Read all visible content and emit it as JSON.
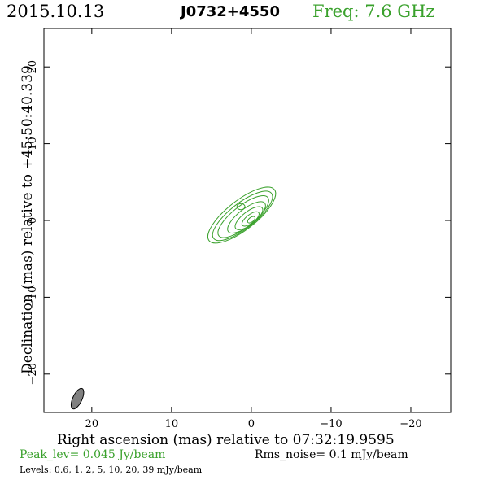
{
  "header": {
    "date": "2015.10.13",
    "source": "J0732+4550",
    "freq": "Freq: 7.6 GHz"
  },
  "colors": {
    "contour": "#3aa12c",
    "beam_fill": "#808080",
    "freq_text": "#3aa12c"
  },
  "footer": {
    "peak": "Peak_lev=  0.045 Jy/beam",
    "rms": "Rms_noise=  0.1 mJy/beam",
    "levels": "Levels: 0.6,    1,    2,    5,   10,   20,   39 mJy/beam"
  },
  "chart_data": {
    "type": "contour",
    "xlabel": "Right ascension (mas) relative to 07:32:19.9595",
    "ylabel": "Declination (mas) relative to +45:50:40.339",
    "xlim": [
      26,
      -25
    ],
    "ylim": [
      -25,
      25
    ],
    "xticks": [
      20,
      10,
      0,
      -10,
      -20
    ],
    "xtick_labels": [
      "20",
      "10",
      "0",
      "−10",
      "−20"
    ],
    "yticks": [
      20,
      10,
      0,
      -10,
      -20
    ],
    "ytick_labels": [
      "20",
      "10",
      "0",
      "−10",
      "−20"
    ],
    "levels_mJy": [
      0.6,
      1,
      2,
      5,
      10,
      20,
      39
    ],
    "peak_Jy_per_beam": 0.045,
    "rms_mJy_per_beam": 0.1,
    "contours": [
      {
        "level": 0.6,
        "cx": 1.2,
        "cy": 0.7,
        "rmaj": 5.2,
        "rmin": 1.9,
        "pa": 38
      },
      {
        "level": 1,
        "cx": 1.1,
        "cy": 0.6,
        "rmaj": 4.6,
        "rmin": 1.65,
        "pa": 38
      },
      {
        "level": 2,
        "cx": 1.0,
        "cy": 0.5,
        "rmaj": 3.9,
        "rmin": 1.4,
        "pa": 38
      },
      {
        "level": 5,
        "cx": 0.6,
        "cy": 0.4,
        "rmaj": 2.9,
        "rmin": 1.1,
        "pa": 38
      },
      {
        "level": 10,
        "cx": 0.3,
        "cy": 0.3,
        "rmaj": 2.1,
        "rmin": 0.85,
        "pa": 38
      },
      {
        "level": 20,
        "cx": 0.1,
        "cy": 0.2,
        "rmaj": 1.3,
        "rmin": 0.55,
        "pa": 38
      },
      {
        "level": 39,
        "cx": 0.0,
        "cy": 0.1,
        "rmaj": 0.55,
        "rmin": 0.3,
        "pa": 38
      }
    ],
    "extra_islands": [
      {
        "level": 0.6,
        "cx": 1.3,
        "cy": 1.8,
        "rmaj": 0.5,
        "rmin": 0.4,
        "pa": 0
      }
    ],
    "beam": {
      "cx": 21.8,
      "cy": -23.2,
      "bmaj": 1.4,
      "bmin": 0.6,
      "pa": 25
    }
  }
}
